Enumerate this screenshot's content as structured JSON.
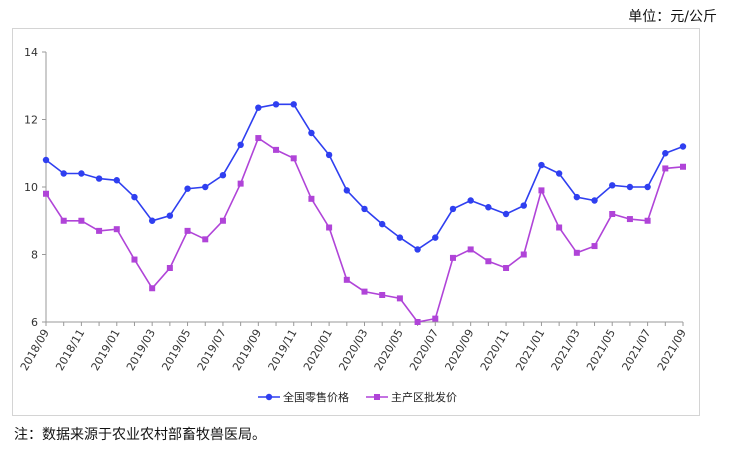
{
  "unit_label": "单位：元/公斤",
  "note": "注：数据来源于农业农村部畜牧兽医局。",
  "colors": {
    "retail": "#2f3ff0",
    "wholesale": "#b044d8",
    "axis": "#999999"
  },
  "chart_data": {
    "type": "line",
    "title": "",
    "xlabel": "",
    "ylabel": "",
    "ylim": [
      6,
      14
    ],
    "yticks": [
      6,
      8,
      10,
      12,
      14
    ],
    "grid": false,
    "legend_position": "bottom-center",
    "x": [
      "2018/09",
      "2018/10",
      "2018/11",
      "2018/12",
      "2019/01",
      "2019/02",
      "2019/03",
      "2019/04",
      "2019/05",
      "2019/06",
      "2019/07",
      "2019/08",
      "2019/09",
      "2019/10",
      "2019/11",
      "2019/12",
      "2020/01",
      "2020/02",
      "2020/03",
      "2020/04",
      "2020/05",
      "2020/06",
      "2020/07",
      "2020/08",
      "2020/09",
      "2020/10",
      "2020/11",
      "2020/12",
      "2021/01",
      "2021/02",
      "2021/03",
      "2021/04",
      "2021/05",
      "2021/06",
      "2021/07",
      "2021/08",
      "2021/09"
    ],
    "x_tick_labels": [
      "2018/09",
      "2018/11",
      "2019/01",
      "2019/03",
      "2019/05",
      "2019/07",
      "2019/09",
      "2019/11",
      "2020/01",
      "2020/03",
      "2020/05",
      "2020/07",
      "2020/09",
      "2020/11",
      "2021/01",
      "2021/03",
      "2021/05",
      "2021/07",
      "2021/09"
    ],
    "series": [
      {
        "name": "全国零售价格",
        "marker": "circle",
        "values": [
          10.8,
          10.4,
          10.4,
          10.25,
          10.2,
          9.7,
          9.0,
          9.15,
          9.95,
          10.0,
          10.35,
          11.25,
          12.35,
          12.45,
          12.45,
          11.6,
          10.95,
          9.9,
          9.35,
          8.9,
          8.5,
          8.15,
          8.5,
          9.35,
          9.6,
          9.4,
          9.2,
          9.45,
          10.65,
          10.4,
          9.7,
          9.6,
          10.05,
          10.0,
          10.0,
          11.0,
          11.2
        ]
      },
      {
        "name": "主产区批发价",
        "marker": "square",
        "values": [
          9.8,
          9.0,
          9.0,
          8.7,
          8.75,
          7.85,
          7.0,
          7.6,
          8.7,
          8.45,
          9.0,
          10.1,
          11.45,
          11.1,
          10.85,
          9.65,
          8.8,
          7.25,
          6.9,
          6.8,
          6.7,
          6.0,
          6.1,
          7.9,
          8.15,
          7.8,
          7.6,
          8.0,
          9.9,
          8.8,
          8.05,
          8.25,
          9.2,
          9.05,
          9.0,
          10.55,
          10.6
        ]
      }
    ]
  }
}
